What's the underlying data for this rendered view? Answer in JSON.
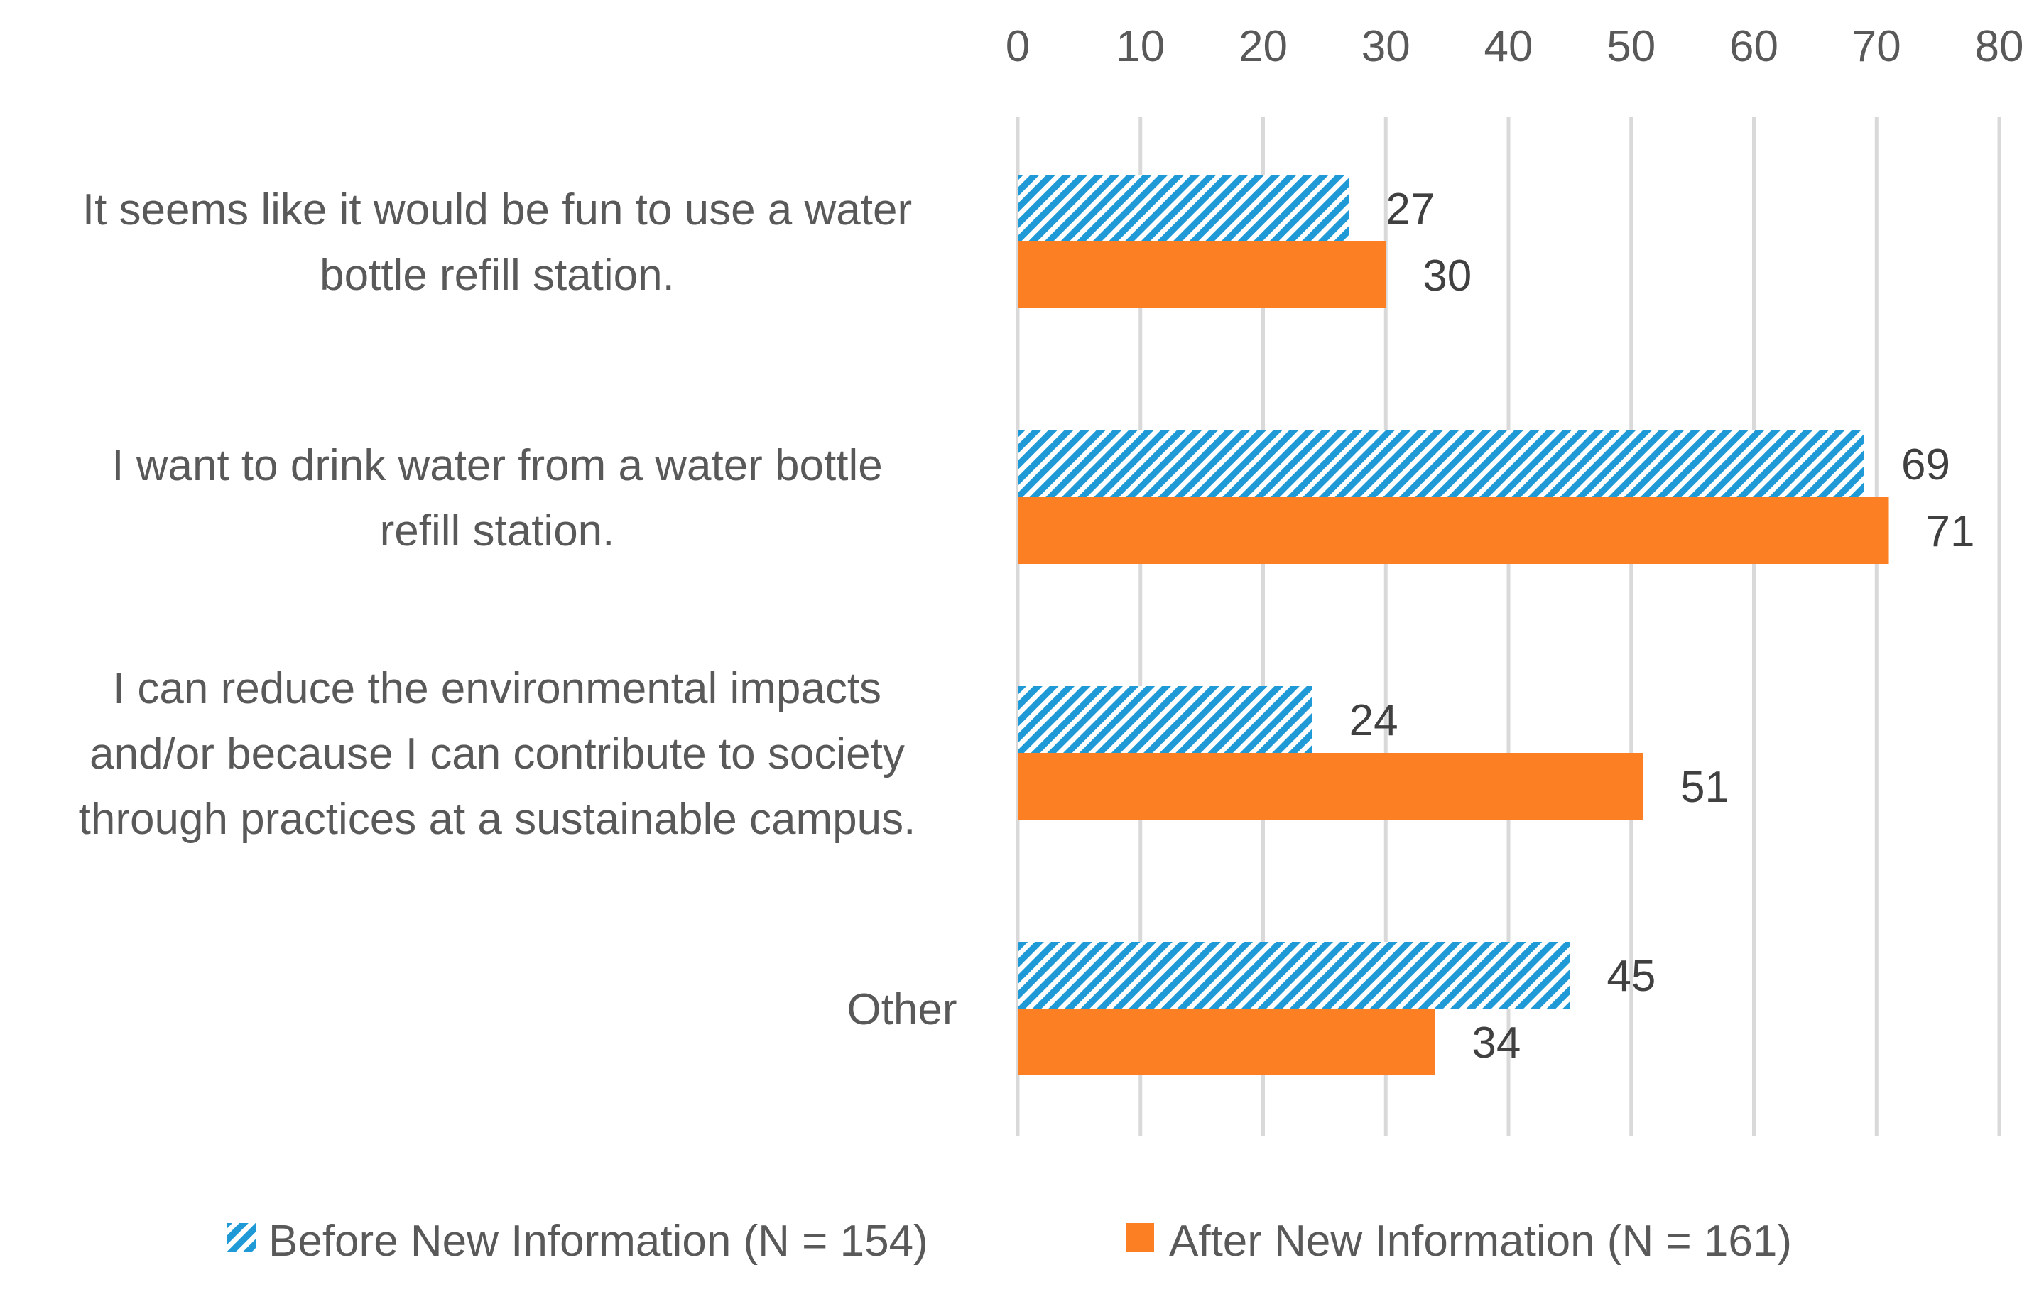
{
  "chart_data": {
    "type": "bar",
    "orientation": "horizontal",
    "categories": [
      [
        "It seems like it would be fun to use a water",
        "bottle refill station."
      ],
      [
        "I want to drink water from a water bottle",
        "refill station."
      ],
      [
        "I can reduce the environmental impacts",
        "and/or because I can contribute to society",
        "through practices at a sustainable campus."
      ],
      [
        "Other"
      ]
    ],
    "series": [
      {
        "name": "Before New Information (N = 154)",
        "values": [
          27,
          69,
          24,
          45
        ],
        "color": "#1f9ad6",
        "pattern": "diagonal-hatch"
      },
      {
        "name": "After New Information (N = 161)",
        "values": [
          30,
          71,
          51,
          34
        ],
        "color": "#fd7f23",
        "pattern": "solid"
      }
    ],
    "xlim": [
      0,
      80
    ],
    "ticks": [
      "0",
      "10",
      "20",
      "30",
      "40",
      "50",
      "60",
      "70",
      "80"
    ],
    "axis_position": "top",
    "grid": true,
    "legend_position": "bottom",
    "data_labels": true
  }
}
